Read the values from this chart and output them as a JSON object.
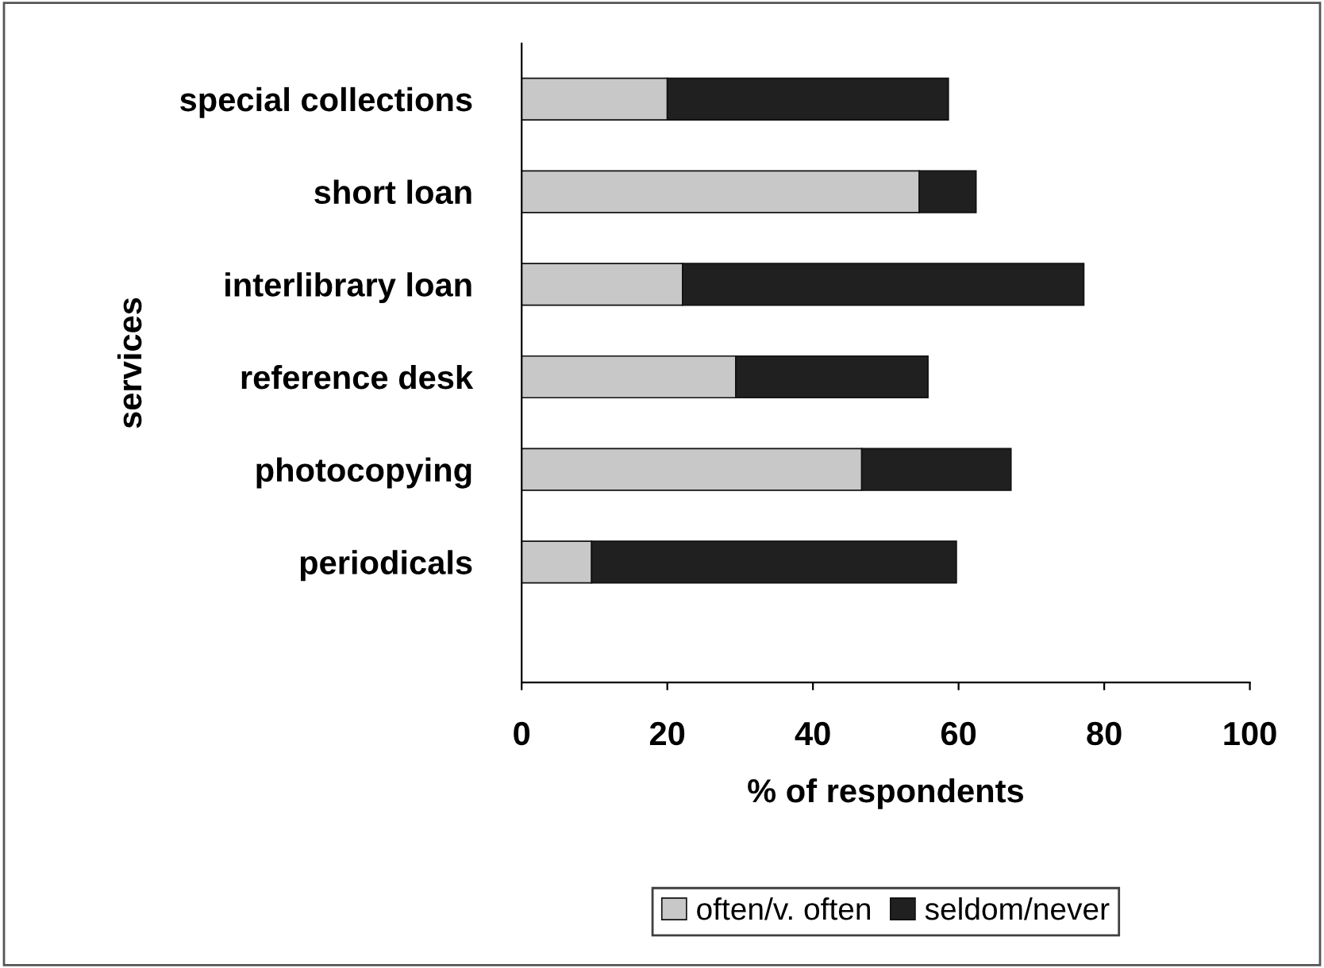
{
  "chart_data": {
    "type": "bar",
    "orientation": "horizontal",
    "stacked": true,
    "xlabel": "% of respondents",
    "ylabel": "services",
    "categories": [
      "special collections",
      "short loan",
      "interlibrary loan",
      "reference desk",
      "photocopying",
      "periodicals"
    ],
    "series": [
      {
        "name": "often/v. often",
        "color": "#c8c8c8",
        "values": [
          20.0,
          54.6,
          22.1,
          29.4,
          46.7,
          9.6
        ]
      },
      {
        "name": "seldom/never",
        "color": "#202020",
        "values": [
          38.6,
          7.8,
          55.1,
          26.4,
          20.5,
          50.1
        ]
      }
    ],
    "xlim": [
      0,
      100
    ],
    "xticks": [
      0,
      20,
      40,
      60,
      80,
      100
    ],
    "grid": false,
    "legend": "bottom"
  }
}
